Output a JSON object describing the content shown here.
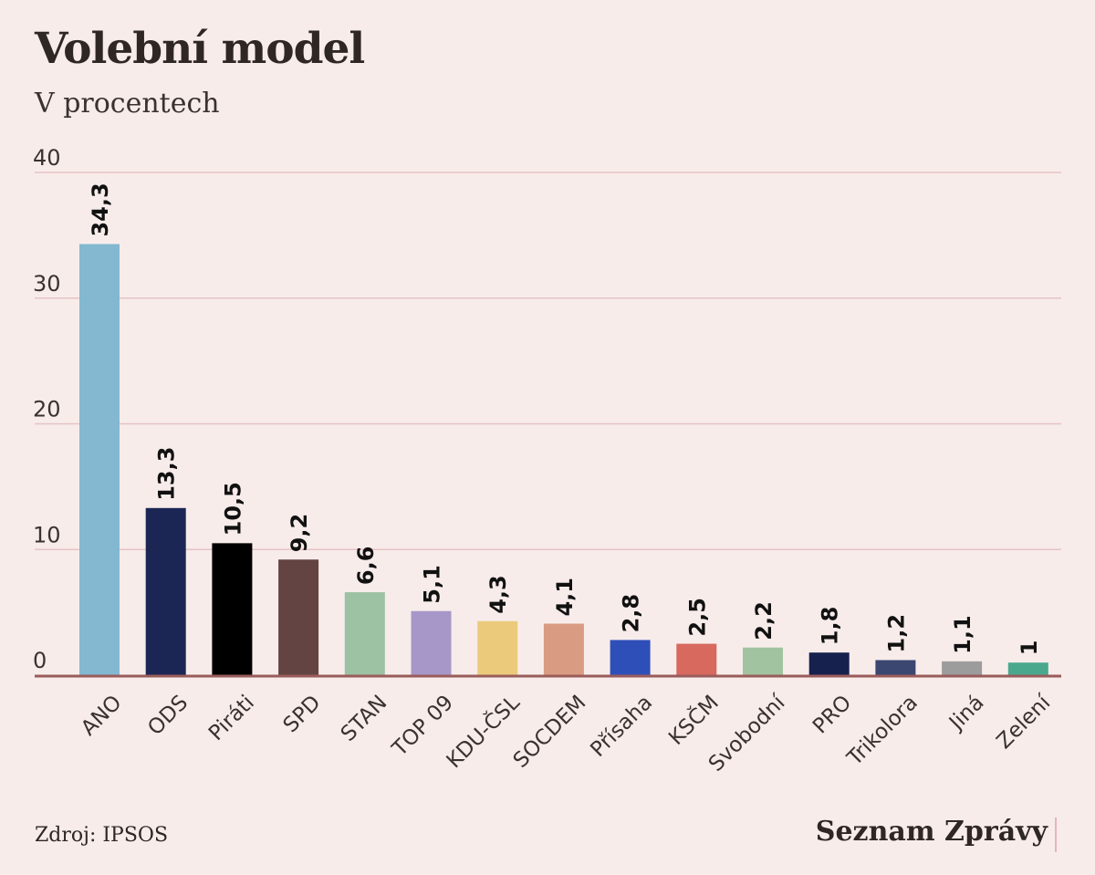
{
  "title": "Volební model",
  "subtitle": "V procentech",
  "source": "Zdroj: IPSOS",
  "brand": "Seznam Zprávy",
  "chart_data": {
    "type": "bar",
    "categories": [
      "ANO",
      "ODS",
      "Piráti",
      "SPD",
      "STAN",
      "TOP 09",
      "KDU-ČSL",
      "SOCDEM",
      "Přísaha",
      "KSČM",
      "Svobodní",
      "PRO",
      "Trikolora",
      "Jiná",
      "Zelení"
    ],
    "values": [
      34.3,
      13.3,
      10.5,
      9.2,
      6.6,
      5.1,
      4.3,
      4.1,
      2.8,
      2.5,
      2.2,
      1.8,
      1.2,
      1.1,
      1
    ],
    "value_labels": [
      "34,3",
      "13,3",
      "10,5",
      "9,2",
      "6,6",
      "5,1",
      "4,3",
      "4,1",
      "2,8",
      "2,5",
      "2,2",
      "1,8",
      "1,2",
      "1,1",
      "1"
    ],
    "colors": [
      "#83b8d0",
      "#1b2654",
      "#000000",
      "#634442",
      "#9cc1a3",
      "#a797c8",
      "#ebcb7b",
      "#d99b82",
      "#2f4fb8",
      "#d7695e",
      "#a2c3a0",
      "#17214d",
      "#3b4771",
      "#9c9c9c",
      "#4aa88d"
    ],
    "ylim": [
      0,
      40
    ],
    "yticks": [
      0,
      10,
      20,
      30,
      40
    ],
    "title": "Volební model",
    "subtitle": "V procentech",
    "grid": true,
    "gridline_color": "#e6c3c5",
    "baseline_color": "#9a5c5b"
  }
}
